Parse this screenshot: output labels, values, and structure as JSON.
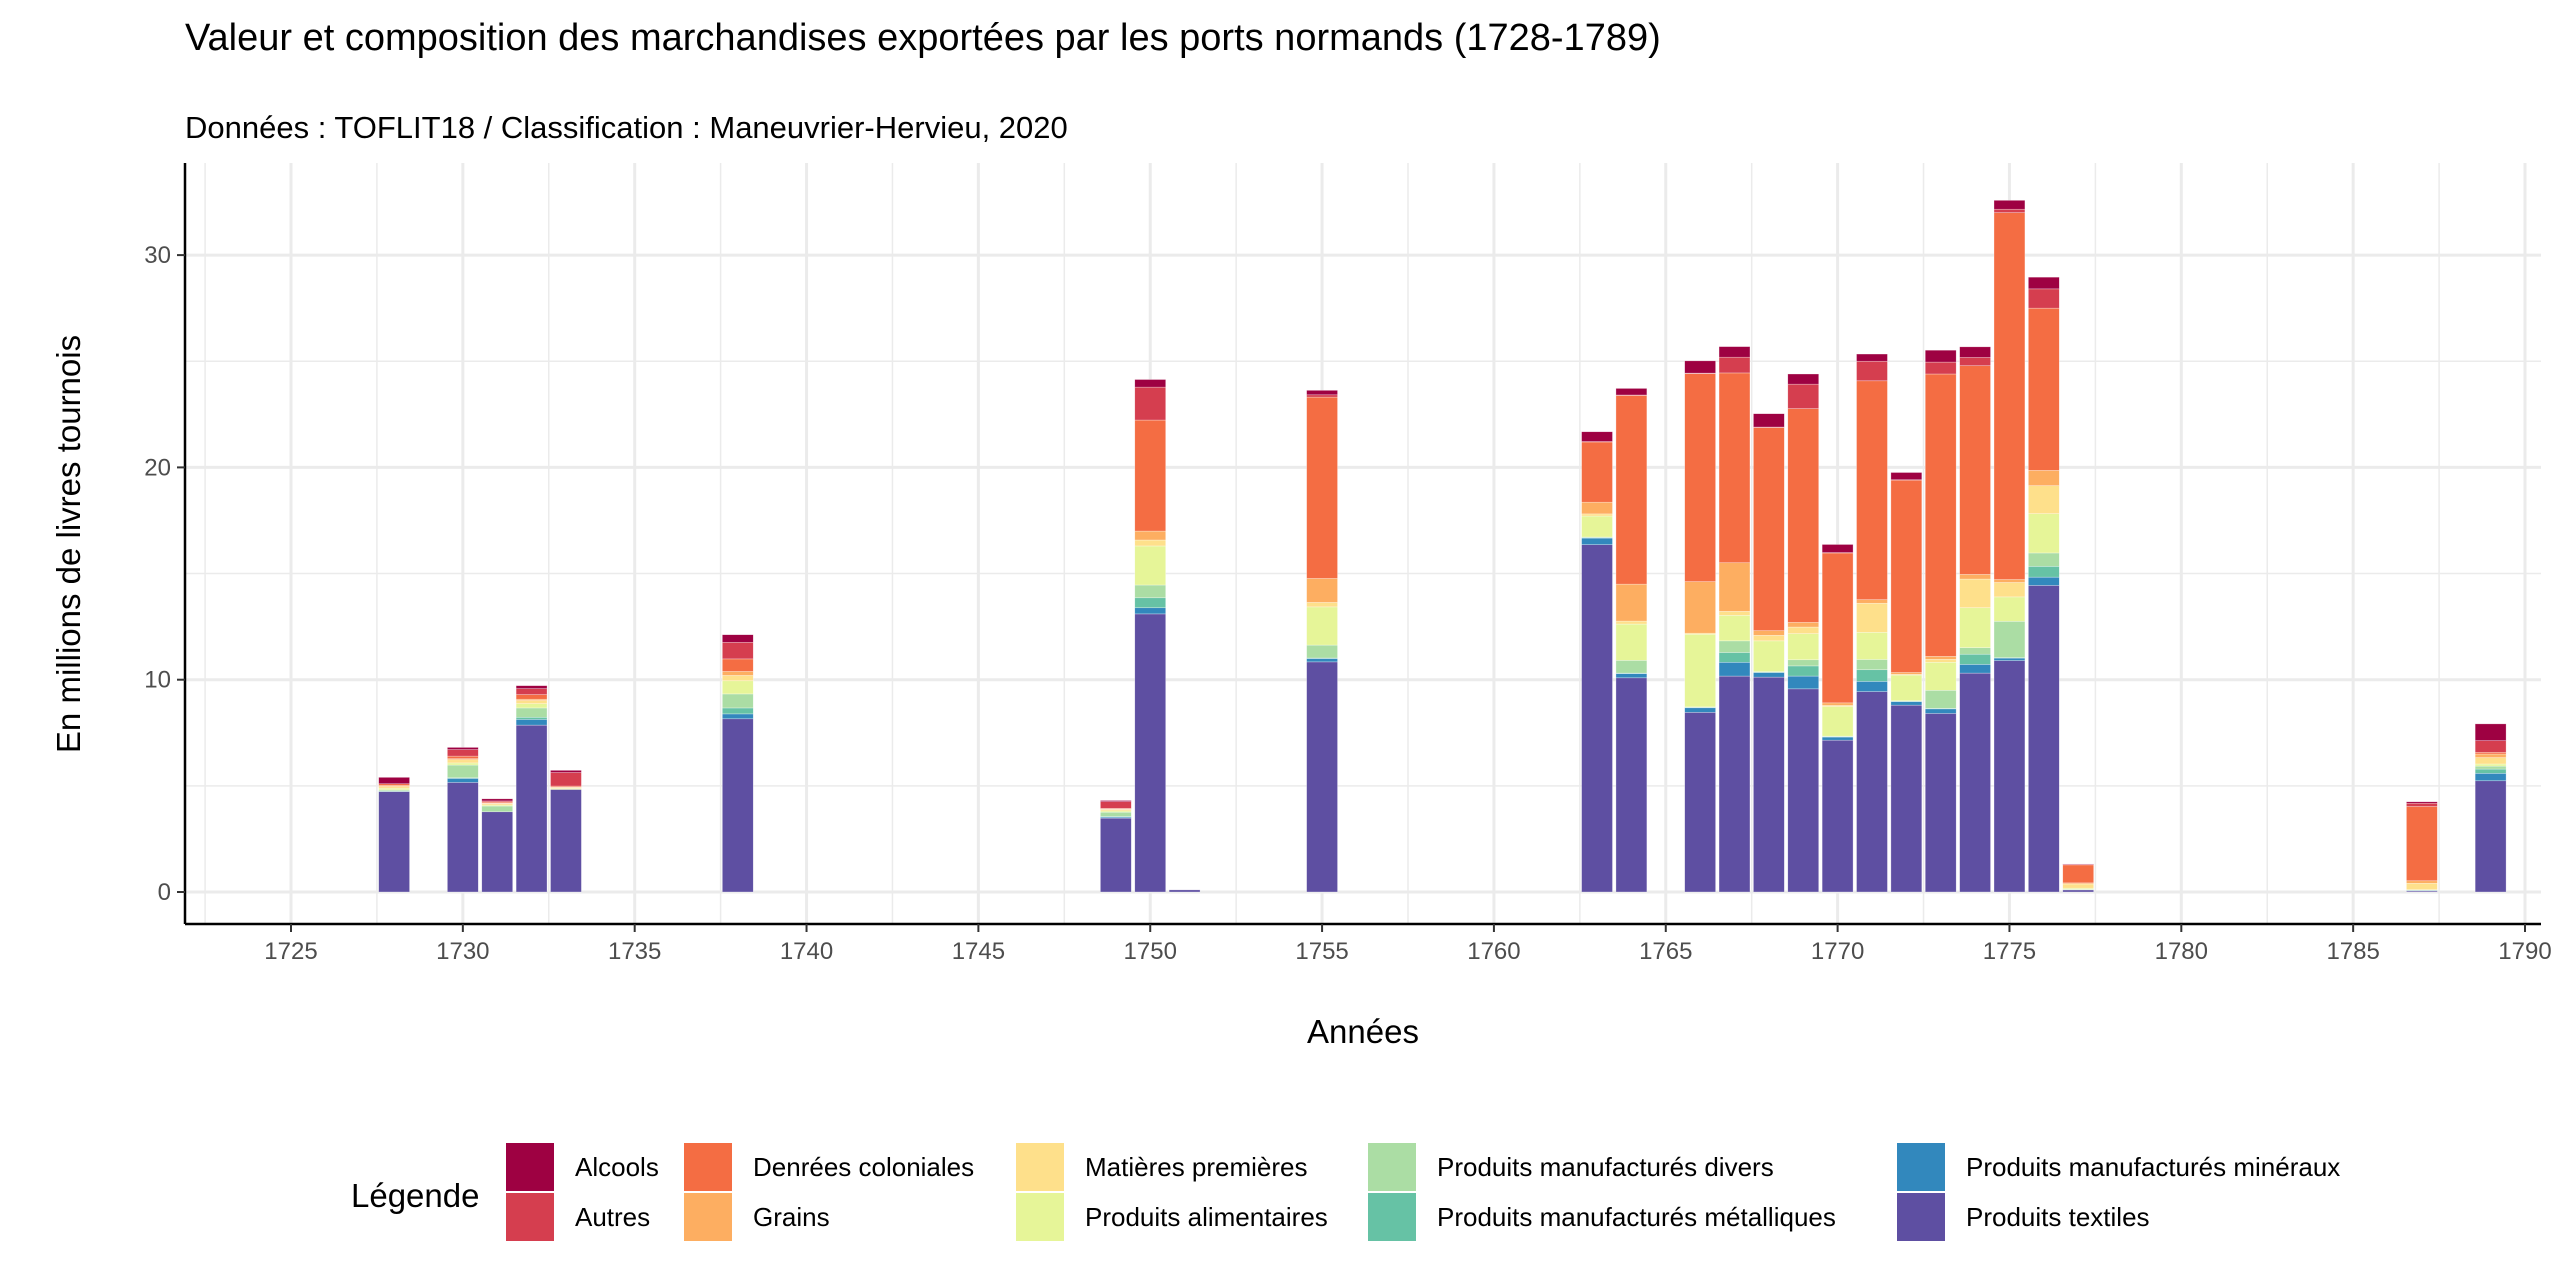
{
  "chart_data": {
    "type": "bar",
    "stacked": true,
    "title": "Valeur et composition des marchandises exportées par les ports normands (1728-1789)",
    "subtitle": "Données : TOFLIT18 / Classification : Maneuvrier-Hervieu, 2020",
    "xlabel": "Années",
    "ylabel": "En millions de livres tournois",
    "xlim": [
      1722,
      1793
    ],
    "ylim": [
      -1.5,
      34.3
    ],
    "x_ticks": [
      1725,
      1730,
      1735,
      1740,
      1745,
      1750,
      1755,
      1760,
      1765,
      1770,
      1775,
      1780,
      1785,
      1790
    ],
    "y_ticks": [
      0,
      10,
      20,
      30
    ],
    "grid": true,
    "legend_title": "Légende",
    "legend_position": "bottom",
    "x": [
      1728,
      1730,
      1731,
      1732,
      1733,
      1738,
      1749,
      1750,
      1751,
      1755,
      1763,
      1764,
      1766,
      1767,
      1768,
      1769,
      1770,
      1771,
      1772,
      1773,
      1774,
      1775,
      1776,
      1777,
      1787,
      1789
    ],
    "series": [
      {
        "name": "Alcools",
        "color": "#9E0142",
        "values": [
          0.3,
          0.1,
          0.1,
          0.14,
          0.1,
          0.36,
          0.05,
          0.36,
          0,
          0.21,
          0.46,
          0.31,
          0.58,
          0.5,
          0.63,
          0.48,
          0.38,
          0.34,
          0.34,
          0.56,
          0.5,
          0.42,
          0.55,
          0.02,
          0.07,
          0.79
        ]
      },
      {
        "name": "Autres",
        "color": "#D53E4F",
        "values": [
          0,
          0.31,
          0.05,
          0.28,
          0.64,
          0.78,
          0.32,
          1.55,
          0,
          0.11,
          0.02,
          0.02,
          0.02,
          0.74,
          0.02,
          1.15,
          0.02,
          0.92,
          0.02,
          0.56,
          0.39,
          0.16,
          0.91,
          0.02,
          0.15,
          0.55
        ]
      },
      {
        "name": "Denrées coloniales",
        "color": "#F46D43",
        "values": [
          0.08,
          0.12,
          0.05,
          0.22,
          0.05,
          0.59,
          0.03,
          5.23,
          0,
          8.54,
          2.84,
          8.89,
          9.8,
          8.94,
          9.57,
          10.07,
          7.06,
          10.31,
          9.06,
          13.3,
          9.83,
          17.28,
          7.64,
          0.85,
          3.5,
          0.08
        ]
      },
      {
        "name": "Grains",
        "color": "#FDAE61",
        "values": [
          0.05,
          0.05,
          0.03,
          0.06,
          0.03,
          0.19,
          0.03,
          0.42,
          0,
          1.13,
          0.55,
          1.74,
          2.43,
          2.29,
          0.22,
          0.22,
          0.12,
          0.17,
          0.09,
          0.14,
          0.22,
          0.14,
          0.72,
          0.05,
          0.12,
          0.17
        ]
      },
      {
        "name": "Matières premières",
        "color": "#FEE08B",
        "values": [
          0.08,
          0.15,
          0.06,
          0.15,
          0.03,
          0.25,
          0.06,
          0.28,
          0,
          0.21,
          0.1,
          0.14,
          0.05,
          0.19,
          0.26,
          0.31,
          0.05,
          1.37,
          0.03,
          0.14,
          1.35,
          0.68,
          1.32,
          0.2,
          0.3,
          0.3
        ]
      },
      {
        "name": "Produits alimentaires",
        "color": "#E6F598",
        "values": [
          0.08,
          0.1,
          0.05,
          0.2,
          0.05,
          0.62,
          0.06,
          1.84,
          0,
          1.8,
          0.99,
          1.71,
          3.42,
          1.2,
          1.45,
          1.23,
          1.4,
          1.28,
          1.21,
          1.32,
          1.88,
          1.15,
          1.85,
          0.05,
          0.03,
          0.1
        ]
      },
      {
        "name": "Produits manufacturés divers",
        "color": "#ABDDA4",
        "values": [
          0.05,
          0.6,
          0.27,
          0.44,
          0,
          0.66,
          0.2,
          0.6,
          0,
          0.61,
          0.02,
          0.6,
          0.02,
          0.55,
          0.02,
          0.29,
          0.02,
          0.48,
          0.02,
          0.85,
          0.31,
          1.71,
          0.63,
          0.03,
          0,
          0.14
        ]
      },
      {
        "name": "Produits manufacturés métalliques",
        "color": "#66C2A5",
        "values": [
          0.03,
          0.03,
          0,
          0.1,
          0,
          0.28,
          0.03,
          0.47,
          0,
          0.02,
          0.03,
          0.02,
          0.02,
          0.46,
          0.02,
          0.48,
          0.02,
          0.55,
          0.02,
          0.02,
          0.48,
          0.02,
          0.51,
          0,
          0,
          0.2
        ]
      },
      {
        "name": "Produits manufacturés minéraux",
        "color": "#3288BD",
        "values": [
          0,
          0.19,
          0,
          0.27,
          0,
          0.23,
          0.05,
          0.29,
          0,
          0.16,
          0.31,
          0.2,
          0.22,
          0.65,
          0.22,
          0.6,
          0.15,
          0.48,
          0.17,
          0.22,
          0.41,
          0.12,
          0.39,
          0,
          0.03,
          0.35
        ]
      },
      {
        "name": "Produits textiles",
        "color": "#5E4FA2",
        "values": [
          4.73,
          5.16,
          3.78,
          7.86,
          4.83,
          8.16,
          3.48,
          13.1,
          0.1,
          10.84,
          16.36,
          10.09,
          8.46,
          10.17,
          10.12,
          9.57,
          7.15,
          9.44,
          8.8,
          8.41,
          10.31,
          10.9,
          14.44,
          0.1,
          0.05,
          5.24
        ]
      }
    ]
  }
}
